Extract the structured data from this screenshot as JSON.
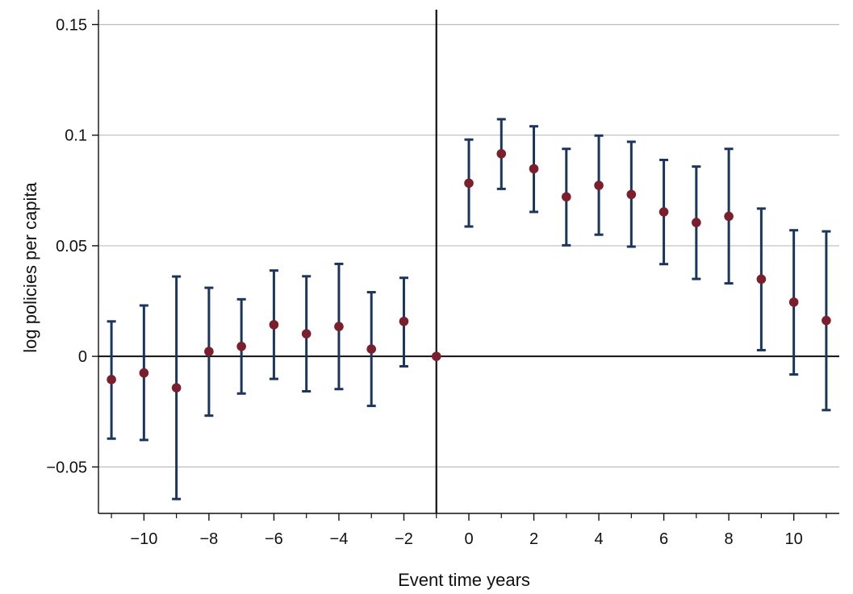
{
  "chart_data": {
    "type": "scatter",
    "xlabel": "Event time years",
    "ylabel": "log policies per capita",
    "xlim": [
      -11.4,
      11.4
    ],
    "ylim": [
      -0.071,
      0.156
    ],
    "x_ticks": [
      -10,
      -8,
      -6,
      -4,
      -2,
      0,
      2,
      4,
      6,
      8,
      10
    ],
    "x_tick_labels": [
      "−10",
      "−8",
      "−6",
      "−4",
      "−2",
      "0",
      "2",
      "4",
      "6",
      "8",
      "10"
    ],
    "x_minor_ticks": [
      -11,
      -9,
      -7,
      -5,
      -3,
      -1,
      1,
      3,
      5,
      7,
      9,
      11
    ],
    "y_ticks": [
      -0.05,
      0,
      0.05,
      0.1,
      0.15
    ],
    "y_tick_labels": [
      "−0.05",
      "0",
      "0.05",
      "0.1",
      "0.15"
    ],
    "grid": true,
    "reference_lines": {
      "x": -1,
      "y": 0
    },
    "x": [
      -11,
      -10,
      -9,
      -8,
      -7,
      -6,
      -5,
      -4,
      -3,
      -2,
      -1,
      0,
      1,
      2,
      3,
      4,
      5,
      6,
      7,
      8,
      9,
      10,
      11
    ],
    "estimate": [
      -0.0105,
      -0.0075,
      -0.0142,
      0.0022,
      0.0045,
      0.0143,
      0.0102,
      0.0135,
      0.0033,
      0.0158,
      0.0,
      0.0783,
      0.0916,
      0.0848,
      0.0721,
      0.0773,
      0.0732,
      0.0653,
      0.0605,
      0.0633,
      0.0349,
      0.0245,
      0.0162
    ],
    "ci_lower": [
      -0.0372,
      -0.0378,
      -0.0645,
      -0.0268,
      -0.0168,
      -0.0102,
      -0.0158,
      -0.0148,
      -0.0224,
      -0.0045,
      null,
      0.0587,
      0.0757,
      0.0653,
      0.0502,
      0.055,
      0.0496,
      0.0417,
      0.035,
      0.033,
      0.0028,
      -0.0082,
      -0.0243
    ],
    "ci_upper": [
      0.0158,
      0.023,
      0.0361,
      0.031,
      0.0258,
      0.0388,
      0.0362,
      0.0418,
      0.029,
      0.0355,
      null,
      0.098,
      0.1072,
      0.104,
      0.0938,
      0.0998,
      0.097,
      0.0888,
      0.0858,
      0.0938,
      0.0668,
      0.057,
      0.0565
    ],
    "colors": {
      "marker": "#7a1f2b",
      "errorbar": "#1b365d",
      "grid": "#bdbdbd",
      "axis": "#111111"
    }
  }
}
